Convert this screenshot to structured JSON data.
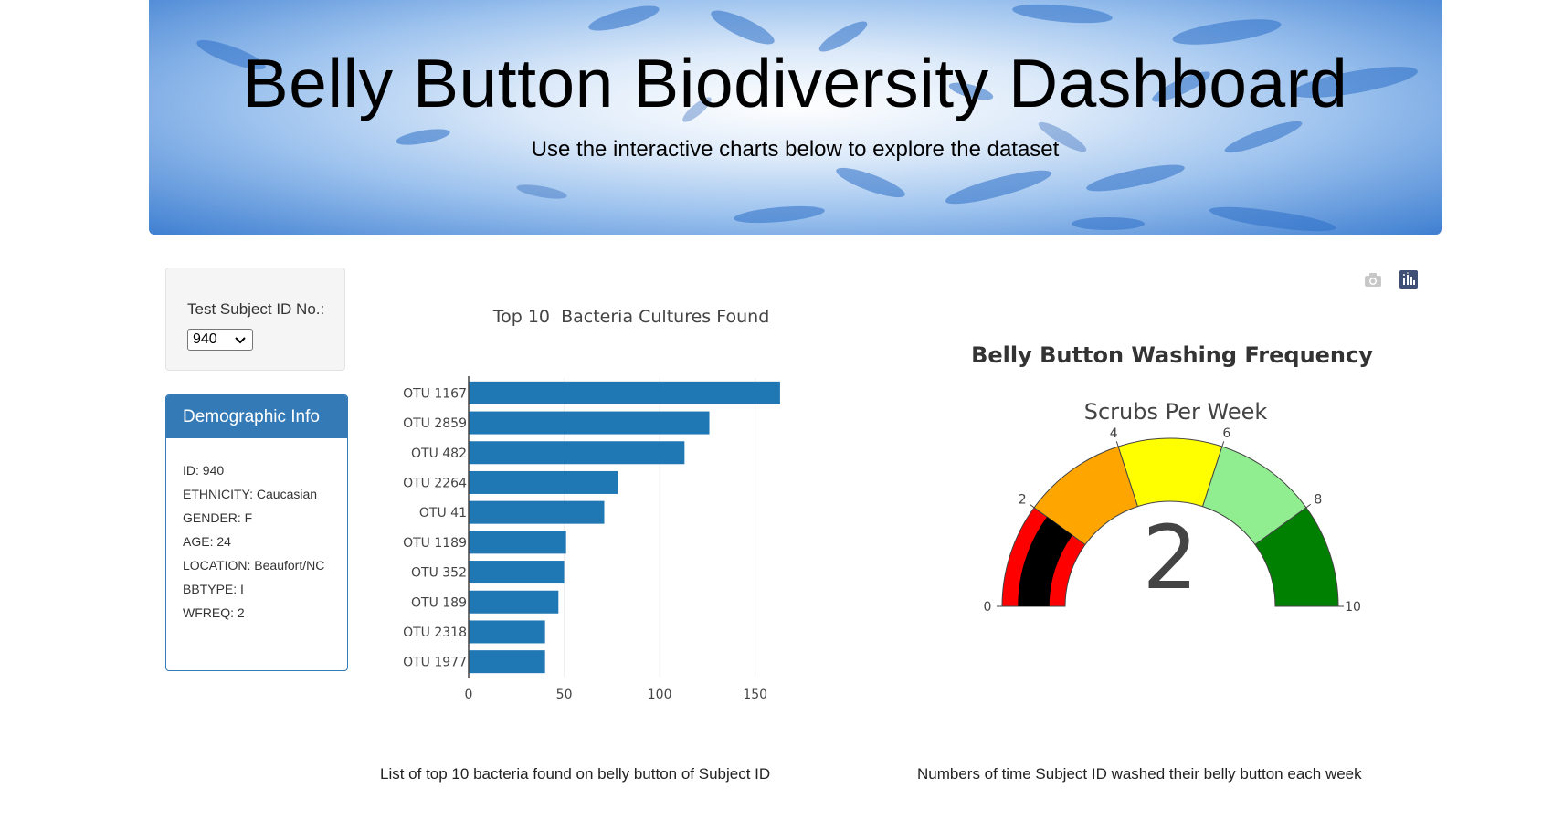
{
  "header": {
    "title": "Belly Button Biodiversity Dashboard",
    "subtitle": "Use the interactive charts below to explore the dataset"
  },
  "selector": {
    "label": "Test Subject ID No.:",
    "selected": "940"
  },
  "demographics": {
    "title": "Demographic Info",
    "rows": [
      "ID: 940",
      "ETHNICITY: Caucasian",
      "GENDER: F",
      "AGE: 24",
      "LOCATION: Beaufort/NC",
      "BBTYPE: I",
      "WFREQ: 2"
    ]
  },
  "captions": {
    "bar": "List of top 10 bacteria found on belly button of Subject ID",
    "gauge": "Numbers of time Subject ID washed their belly button each week"
  },
  "modebar": {
    "icons": [
      "camera-icon",
      "plotly-logo-icon"
    ]
  },
  "chart_data": [
    {
      "type": "bar",
      "orientation": "horizontal",
      "title": "Top 10  Bacteria Cultures Found",
      "categories": [
        "OTU 1167",
        "OTU 2859",
        "OTU 482",
        "OTU 2264",
        "OTU 41",
        "OTU 1189",
        "OTU 352",
        "OTU 189",
        "OTU 2318",
        "OTU 1977"
      ],
      "values": [
        163,
        126,
        113,
        78,
        71,
        51,
        50,
        47,
        40,
        40
      ],
      "xlim": [
        0,
        164
      ],
      "xticks": [
        0,
        50,
        100,
        150
      ],
      "grid": true,
      "color": "#1f77b4"
    },
    {
      "type": "gauge",
      "title": "Belly Button Washing Frequency",
      "subtitle": "Scrubs Per Week",
      "value": 2,
      "range": [
        0,
        10
      ],
      "ticks": [
        0,
        2,
        4,
        6,
        8,
        10
      ],
      "steps": [
        {
          "range": [
            0,
            2
          ],
          "color": "#ff0000"
        },
        {
          "range": [
            2,
            4
          ],
          "color": "#ffa500"
        },
        {
          "range": [
            4,
            6
          ],
          "color": "#ffff00"
        },
        {
          "range": [
            6,
            8
          ],
          "color": "#90ee90"
        },
        {
          "range": [
            8,
            10
          ],
          "color": "#008000"
        }
      ],
      "bar_color": "#000000"
    }
  ]
}
